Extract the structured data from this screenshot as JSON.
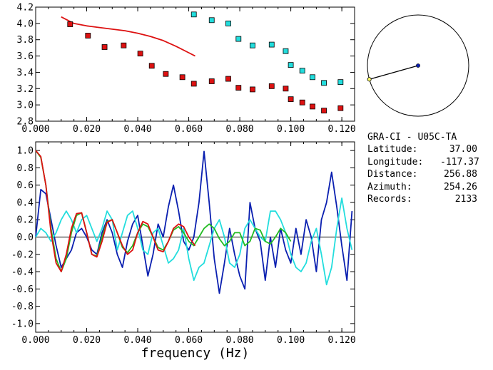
{
  "colors": {
    "red": "#dd1111",
    "green": "#22bb22",
    "blue": "#0a1fb0",
    "cyan": "#22dddd",
    "black": "#000000"
  },
  "chart_data": [
    {
      "type": "scatter",
      "xlim": [
        0.0,
        0.125
      ],
      "ylim": [
        2.8,
        4.2
      ],
      "x_ticks": [
        "0.000",
        "0.020",
        "0.040",
        "0.060",
        "0.080",
        "0.100",
        "0.120"
      ],
      "y_ticks": [
        "2.8",
        "3.0",
        "3.2",
        "3.4",
        "3.6",
        "3.8",
        "4.0",
        "4.2"
      ],
      "grid": false,
      "series": [
        {
          "color": "#dd1111",
          "style": "line",
          "x": [
            0.01,
            0.015,
            0.02,
            0.025,
            0.03,
            0.035,
            0.04,
            0.045,
            0.05,
            0.055,
            0.06,
            0.0625
          ],
          "y": [
            4.08,
            4.0,
            3.97,
            3.95,
            3.93,
            3.91,
            3.88,
            3.84,
            3.79,
            3.72,
            3.64,
            3.6
          ]
        },
        {
          "color": "#dd1111",
          "style": "squares",
          "x": [
            0.0135,
            0.0205,
            0.027,
            0.0345,
            0.041,
            0.0455,
            0.051,
            0.0575,
            0.062,
            0.069,
            0.0755,
            0.0795,
            0.085,
            0.0925,
            0.098,
            0.1,
            0.1045,
            0.1085,
            0.113,
            0.1195
          ],
          "y": [
            3.99,
            3.85,
            3.71,
            3.73,
            3.63,
            3.48,
            3.38,
            3.34,
            3.26,
            3.29,
            3.32,
            3.21,
            3.19,
            3.23,
            3.2,
            3.07,
            3.03,
            2.98,
            2.93,
            2.96
          ]
        },
        {
          "color": "#22dddd",
          "style": "squares",
          "x": [
            0.062,
            0.069,
            0.0755,
            0.0795,
            0.085,
            0.0925,
            0.098,
            0.1,
            0.1045,
            0.1085,
            0.113,
            0.1195
          ],
          "y": [
            4.11,
            4.04,
            4.0,
            3.81,
            3.73,
            3.74,
            3.66,
            3.49,
            3.42,
            3.34,
            3.27,
            3.28
          ]
        }
      ]
    },
    {
      "type": "line",
      "xlim": [
        0.0,
        0.125
      ],
      "ylim": [
        -1.1,
        1.1
      ],
      "x_ticks": [
        "0.000",
        "0.020",
        "0.040",
        "0.060",
        "0.080",
        "0.100",
        "0.120"
      ],
      "y_ticks": [
        "-1.0",
        "-0.8",
        "-0.6",
        "-0.4",
        "-0.2",
        "0.0",
        "0.2",
        "0.4",
        "0.6",
        "0.8",
        "1.0"
      ],
      "xlabel": "frequency (Hz)",
      "grid": false,
      "baseline": 0.0,
      "series": [
        {
          "color": "#0a1fb0",
          "x": [
            0.0,
            0.002,
            0.004,
            0.006,
            0.008,
            0.01,
            0.012,
            0.014,
            0.016,
            0.018,
            0.02,
            0.022,
            0.024,
            0.026,
            0.028,
            0.03,
            0.032,
            0.034,
            0.036,
            0.038,
            0.04,
            0.042,
            0.044,
            0.046,
            0.048,
            0.05,
            0.052,
            0.054,
            0.056,
            0.058,
            0.06,
            0.062,
            0.064,
            0.066,
            0.068,
            0.07,
            0.072,
            0.074,
            0.076,
            0.078,
            0.08,
            0.082,
            0.084,
            0.086,
            0.088,
            0.09,
            0.092,
            0.094,
            0.096,
            0.098,
            0.1,
            0.102,
            0.104,
            0.106,
            0.108,
            0.11,
            0.112,
            0.114,
            0.116,
            0.118,
            0.12,
            0.122,
            0.124
          ],
          "y": [
            0.0,
            0.55,
            0.5,
            0.2,
            -0.1,
            -0.35,
            -0.25,
            -0.15,
            0.05,
            0.1,
            0.0,
            -0.15,
            -0.2,
            0.05,
            0.2,
            0.05,
            -0.2,
            -0.35,
            -0.05,
            0.15,
            0.25,
            -0.1,
            -0.45,
            -0.2,
            0.15,
            0.0,
            0.35,
            0.6,
            0.3,
            -0.05,
            -0.15,
            0.0,
            0.4,
            0.99,
            0.4,
            -0.25,
            -0.65,
            -0.3,
            0.1,
            -0.2,
            -0.45,
            -0.6,
            0.4,
            0.1,
            -0.05,
            -0.5,
            0.0,
            -0.35,
            0.1,
            -0.15,
            -0.3,
            0.1,
            -0.2,
            0.2,
            0.0,
            -0.4,
            0.2,
            0.4,
            0.75,
            0.35,
            -0.1,
            -0.5,
            0.3
          ]
        },
        {
          "color": "#22dddd",
          "x": [
            0.0,
            0.002,
            0.004,
            0.006,
            0.008,
            0.01,
            0.012,
            0.014,
            0.016,
            0.018,
            0.02,
            0.022,
            0.024,
            0.026,
            0.028,
            0.03,
            0.032,
            0.034,
            0.036,
            0.038,
            0.04,
            0.042,
            0.044,
            0.046,
            0.048,
            0.05,
            0.052,
            0.054,
            0.056,
            0.058,
            0.06,
            0.062,
            0.064,
            0.066,
            0.068,
            0.07,
            0.072,
            0.074,
            0.076,
            0.078,
            0.08,
            0.082,
            0.084,
            0.086,
            0.088,
            0.09,
            0.092,
            0.094,
            0.096,
            0.098,
            0.1,
            0.102,
            0.104,
            0.106,
            0.108,
            0.11,
            0.112,
            0.114,
            0.116,
            0.118,
            0.12,
            0.122,
            0.124
          ],
          "y": [
            0.0,
            0.1,
            0.05,
            -0.05,
            0.05,
            0.2,
            0.3,
            0.2,
            0.05,
            0.2,
            0.25,
            0.1,
            -0.05,
            0.1,
            0.3,
            0.2,
            -0.15,
            0.05,
            0.25,
            0.3,
            0.1,
            -0.15,
            -0.2,
            0.05,
            0.1,
            -0.1,
            -0.3,
            -0.25,
            -0.15,
            0.1,
            -0.25,
            -0.5,
            -0.35,
            -0.3,
            -0.1,
            0.1,
            0.2,
            0.0,
            -0.3,
            -0.35,
            -0.2,
            0.1,
            0.2,
            0.1,
            0.0,
            -0.05,
            0.3,
            0.3,
            0.2,
            0.05,
            -0.2,
            -0.35,
            -0.4,
            -0.3,
            -0.05,
            0.1,
            -0.2,
            -0.55,
            -0.35,
            0.1,
            0.45,
            0.1,
            -0.15
          ]
        },
        {
          "color": "#22bb22",
          "x": [
            0.0,
            0.002,
            0.004,
            0.006,
            0.008,
            0.01,
            0.012,
            0.014,
            0.016,
            0.018,
            0.02,
            0.022,
            0.024,
            0.026,
            0.028,
            0.03,
            0.032,
            0.034,
            0.036,
            0.038,
            0.04,
            0.042,
            0.044,
            0.046,
            0.048,
            0.05,
            0.052,
            0.054,
            0.056,
            0.058,
            0.06,
            0.062,
            0.064,
            0.066,
            0.068,
            0.07,
            0.072,
            0.074,
            0.076,
            0.078,
            0.08,
            0.082,
            0.084,
            0.086,
            0.088,
            0.09,
            0.092,
            0.094,
            0.096,
            0.098,
            0.1
          ],
          "y": [
            1.0,
            0.92,
            0.6,
            0.1,
            -0.25,
            -0.4,
            -0.25,
            0.05,
            0.25,
            0.28,
            0.05,
            -0.2,
            -0.22,
            0.0,
            0.18,
            0.2,
            0.05,
            -0.12,
            -0.18,
            -0.1,
            0.05,
            0.15,
            0.12,
            0.0,
            -0.12,
            -0.15,
            -0.05,
            0.08,
            0.12,
            0.05,
            -0.05,
            -0.1,
            0.0,
            0.1,
            0.15,
            0.1,
            -0.02,
            -0.1,
            -0.05,
            0.05,
            0.05,
            -0.1,
            -0.05,
            0.1,
            0.08,
            -0.05,
            -0.08,
            0.0,
            0.1,
            0.05,
            -0.05
          ]
        },
        {
          "color": "#dd1111",
          "x": [
            0.0,
            0.002,
            0.004,
            0.006,
            0.008,
            0.01,
            0.012,
            0.014,
            0.016,
            0.018,
            0.02,
            0.022,
            0.024,
            0.026,
            0.028,
            0.03,
            0.032,
            0.034,
            0.036,
            0.038,
            0.04,
            0.042,
            0.044,
            0.046,
            0.048,
            0.05,
            0.052,
            0.054,
            0.056,
            0.058,
            0.06,
            0.0625
          ],
          "y": [
            1.0,
            0.93,
            0.6,
            0.05,
            -0.3,
            -0.4,
            -0.2,
            0.1,
            0.27,
            0.28,
            0.05,
            -0.2,
            -0.23,
            -0.05,
            0.17,
            0.2,
            0.05,
            -0.1,
            -0.2,
            -0.15,
            0.05,
            0.18,
            0.15,
            0.0,
            -0.15,
            -0.17,
            -0.05,
            0.1,
            0.15,
            0.12,
            0.0,
            -0.1
          ]
        }
      ]
    }
  ],
  "azimuth_map": {
    "azimuth_deg": 254.26
  },
  "station_info": {
    "title": "GRA-CI - U05C-TA",
    "rows": [
      {
        "key": "Latitude:",
        "value": "37.00"
      },
      {
        "key": "Longitude:",
        "value": "-117.37"
      },
      {
        "key": "Distance:",
        "value": "256.88"
      },
      {
        "key": "Azimuth:",
        "value": "254.26"
      },
      {
        "key": "Records:",
        "value": "2133"
      }
    ]
  }
}
